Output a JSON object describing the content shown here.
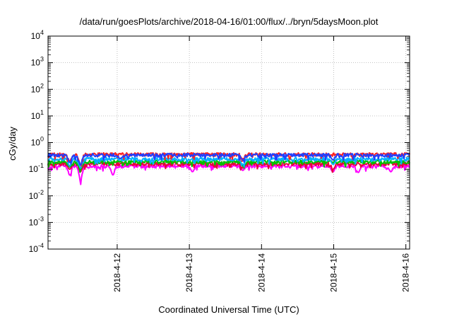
{
  "chart_data": {
    "type": "line",
    "title": "/data/run/goesPlots/archive/2018-04-16/01:00/flux/../bryn/5daysMoon.plot",
    "xlabel": "Coordinated Universal Time (UTC)",
    "ylabel": "cGy/day",
    "x_type": "date",
    "xlim": [
      "2018-04-11 01:00",
      "2018-04-16 01:15"
    ],
    "x_ticks": [
      "2018-4-12",
      "2018-4-13",
      "2018-4-14",
      "2018-4-15",
      "2018-4-16"
    ],
    "y_scale": "log",
    "ylim": [
      0.0001,
      10000
    ],
    "y_ticks": [
      {
        "base": "10",
        "exp": "-4"
      },
      {
        "base": "10",
        "exp": "-3"
      },
      {
        "base": "10",
        "exp": "-2"
      },
      {
        "base": "10",
        "exp": "-1"
      },
      {
        "base": "10",
        "exp": "0"
      },
      {
        "base": "10",
        "exp": "1"
      },
      {
        "base": "10",
        "exp": "2"
      },
      {
        "base": "10",
        "exp": "3"
      },
      {
        "base": "10",
        "exp": "4"
      }
    ],
    "grid": true,
    "legend": "none",
    "series": [
      {
        "color": "#ff00ff",
        "level": 0.13,
        "dips": [
          [
            0.3,
            0.06
          ],
          [
            0.45,
            0.035
          ],
          [
            0.9,
            0.06
          ],
          [
            2.0,
            0.08
          ],
          [
            2.7,
            0.09
          ],
          [
            3.95,
            0.08
          ],
          [
            4.3,
            0.075
          ],
          [
            4.75,
            0.08
          ]
        ]
      },
      {
        "color": "#e8003c",
        "level": 0.16,
        "dips": [
          [
            0.3,
            0.1
          ],
          [
            0.45,
            0.08
          ],
          [
            2.7,
            0.11
          ],
          [
            3.95,
            0.1
          ]
        ]
      },
      {
        "color": "#00c000",
        "level": 0.19,
        "dips": [
          [
            0.3,
            0.12
          ],
          [
            0.45,
            0.1
          ],
          [
            2.7,
            0.13
          ]
        ]
      },
      {
        "color": "#00b0ff",
        "level": 0.24,
        "dips": [
          [
            0.3,
            0.13
          ],
          [
            0.45,
            0.11
          ],
          [
            2.7,
            0.15
          ],
          [
            3.95,
            0.15
          ]
        ]
      },
      {
        "color": "#ff2020",
        "level": 0.36,
        "dips": [
          [
            0.3,
            0.2
          ],
          [
            0.45,
            0.15
          ],
          [
            2.7,
            0.25
          ]
        ]
      },
      {
        "color": "#2040ff",
        "level": 0.34,
        "dips": [
          [
            0.3,
            0.18
          ],
          [
            0.45,
            0.14
          ],
          [
            1.0,
            0.25
          ],
          [
            2.7,
            0.22
          ],
          [
            3.95,
            0.22
          ]
        ]
      }
    ]
  }
}
